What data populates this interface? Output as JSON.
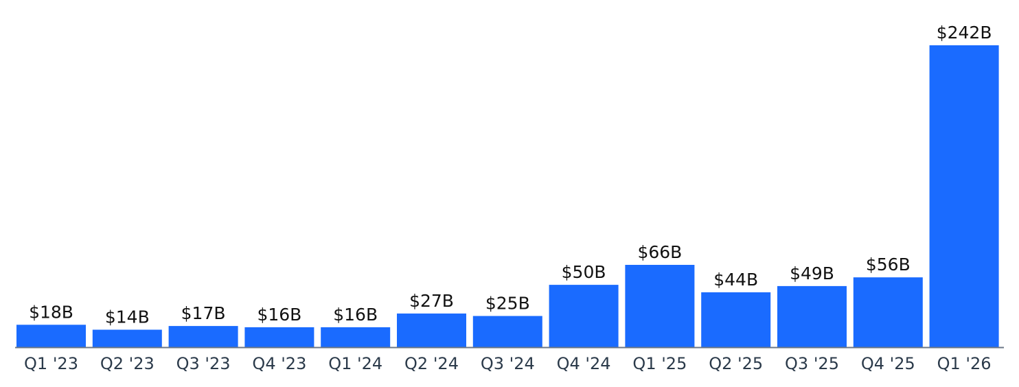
{
  "chart_data": {
    "type": "bar",
    "title": "",
    "xlabel": "",
    "ylabel": "",
    "ylim": [
      0,
      242
    ],
    "categories": [
      "Q1 '23",
      "Q2 '23",
      "Q3 '23",
      "Q4 '23",
      "Q1 '24",
      "Q2 '24",
      "Q3 '24",
      "Q4 '24",
      "Q1 '25",
      "Q2 '25",
      "Q3 '25",
      "Q4 '25",
      "Q1 '26"
    ],
    "values": [
      18,
      14,
      17,
      16,
      16,
      27,
      25,
      50,
      66,
      44,
      49,
      56,
      242
    ],
    "value_labels": [
      "$18B",
      "$14B",
      "$17B",
      "$16B",
      "$16B",
      "$27B",
      "$25B",
      "$50B",
      "$66B",
      "$44B",
      "$49B",
      "$56B",
      "$242B"
    ],
    "grid": false,
    "legend": "none"
  },
  "colors": {
    "bar": "#1a6bff",
    "axis": "#6b7787",
    "label": "#111111",
    "tick": "#2b3a4a"
  }
}
